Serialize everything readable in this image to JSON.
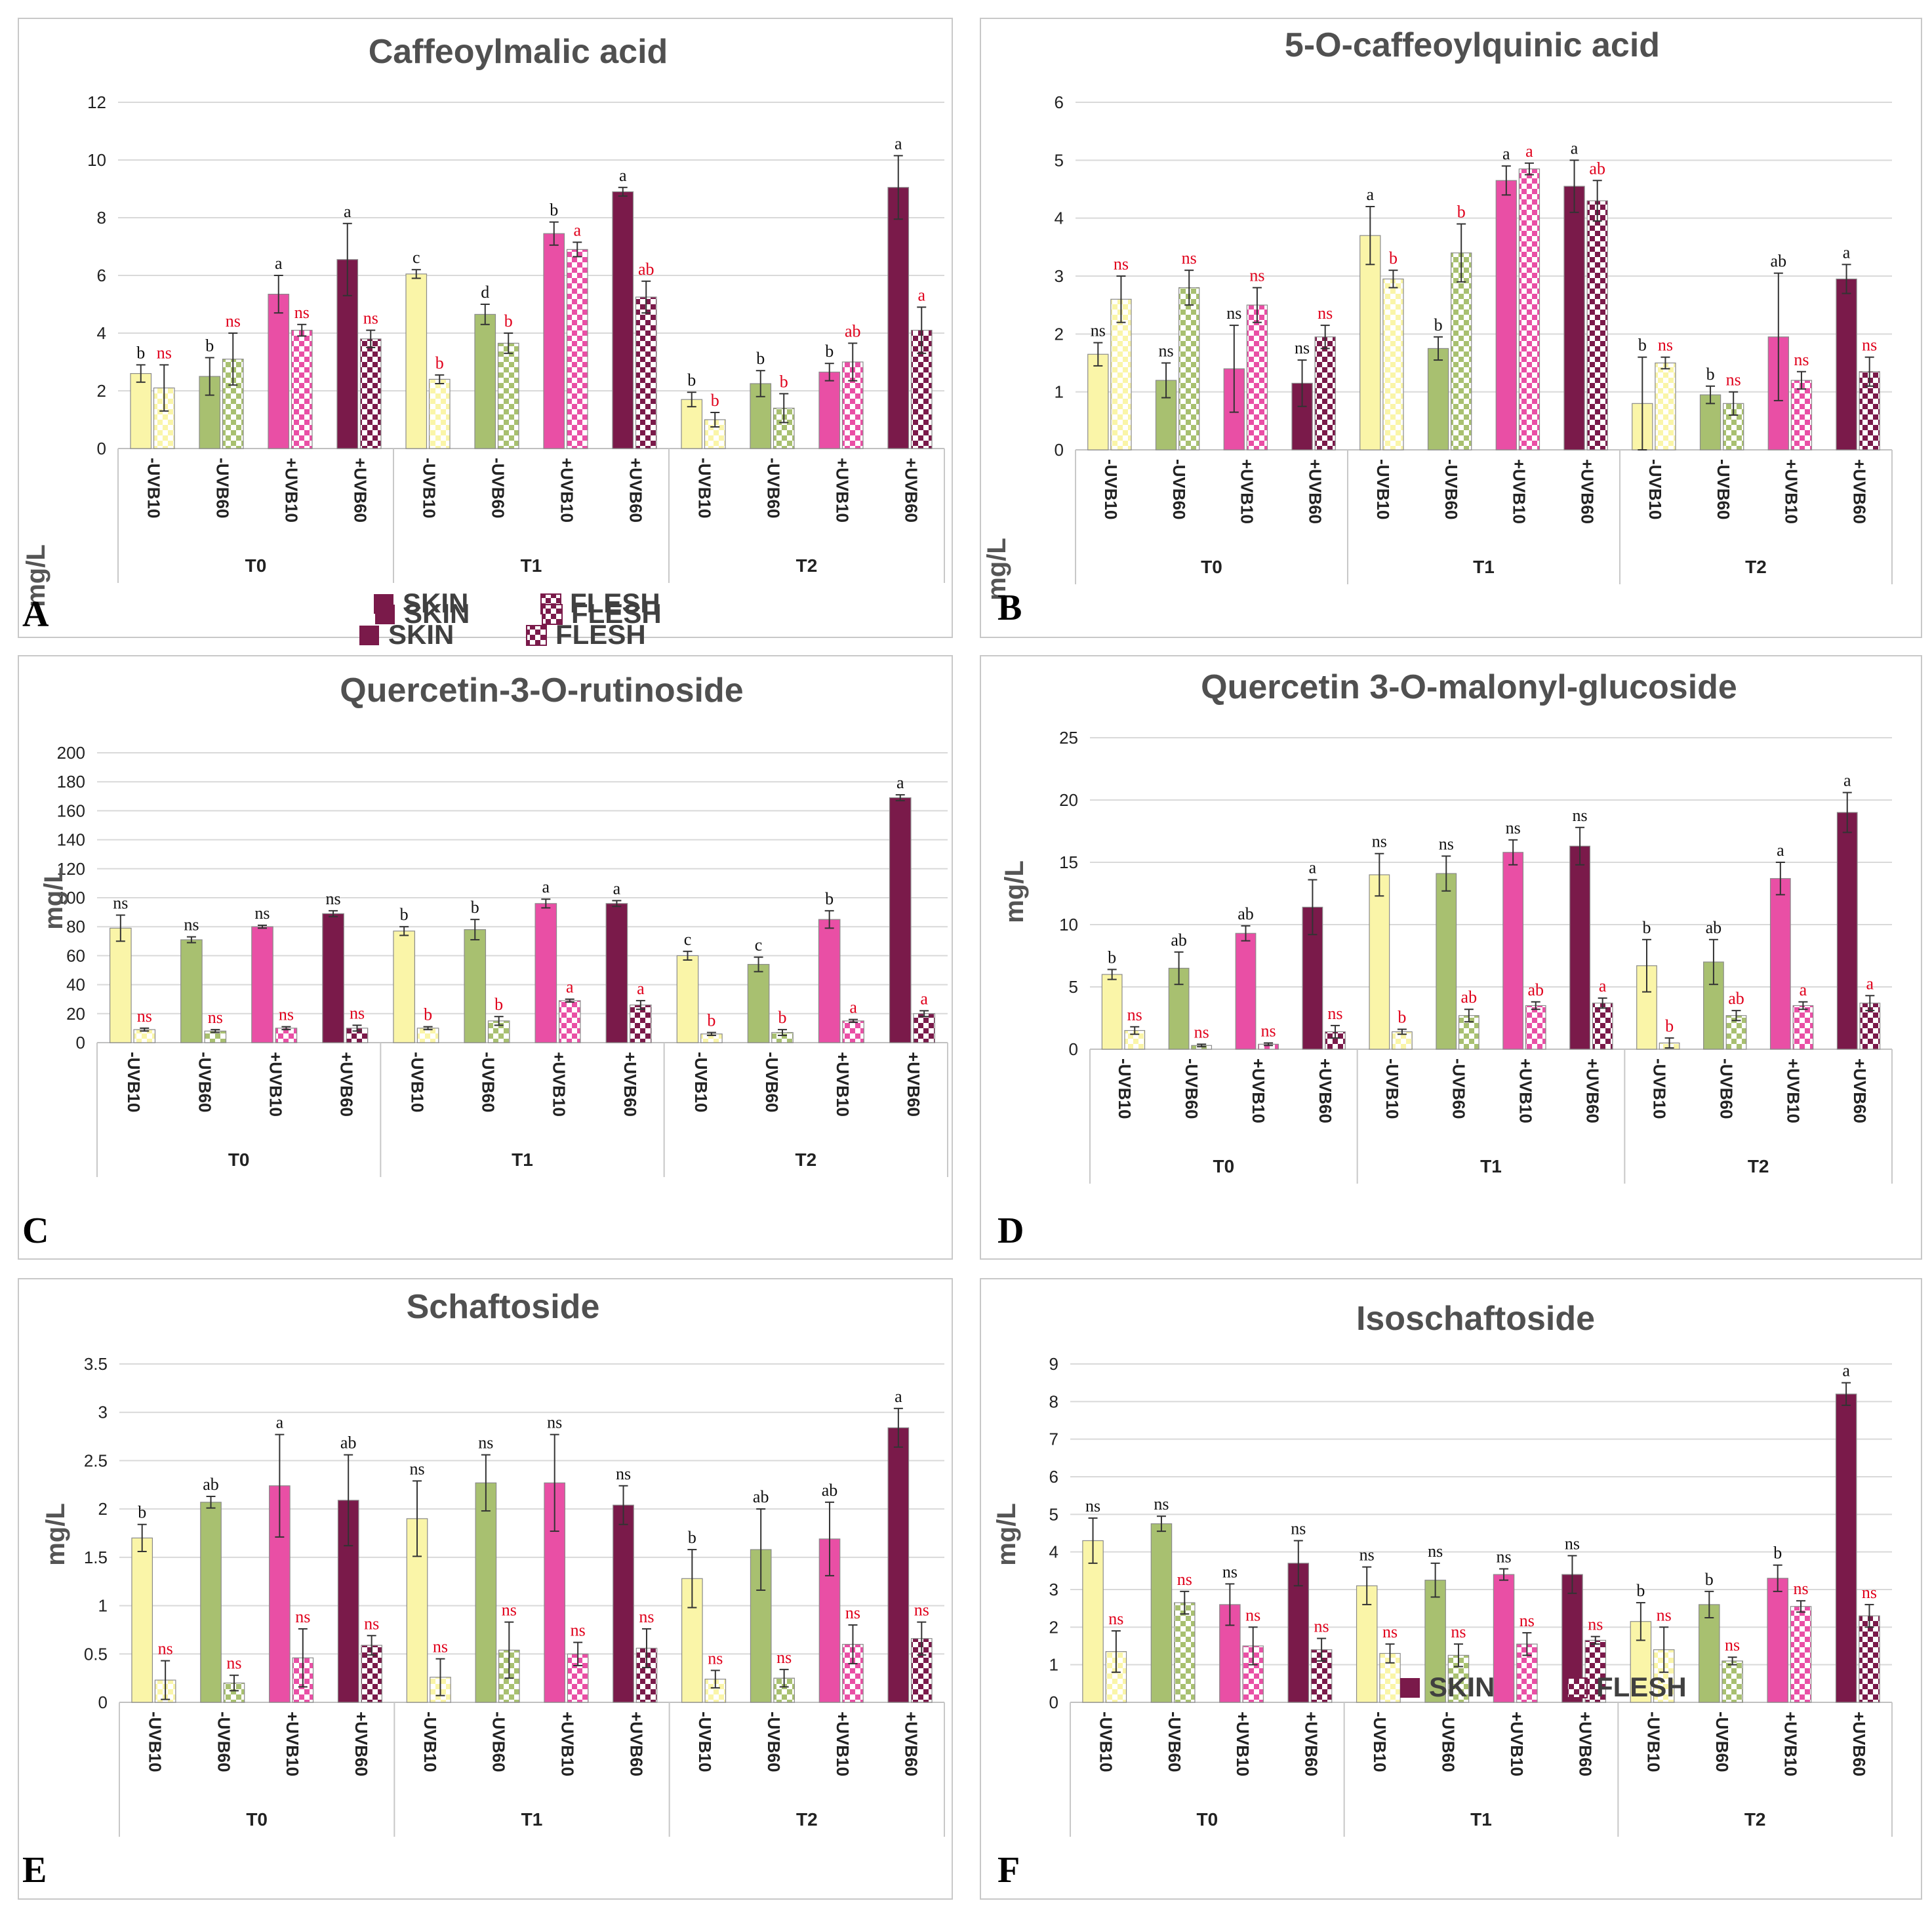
{
  "groups": [
    "T0",
    "T1",
    "T2"
  ],
  "conditions": [
    "-UVB10",
    "-UVB60",
    "+UVB10",
    "+UVB60"
  ],
  "legend": {
    "skin": "SKIN",
    "flesh": "FLESH"
  },
  "ylabel": "mg/L",
  "colors": {
    "-UVB10": "#FAF5A8",
    "-UVB60": "#A8C070",
    "+UVB10": "#E94FA5",
    "+UVB60": "#7A1A4A",
    "skin_legend": "#7A1A4A",
    "letter_skin": "#111111",
    "letter_flesh": "#E0001B",
    "axis_text": "#222222",
    "title": "#505050",
    "grid": "#D9D9D9"
  },
  "chart_data": [
    {
      "type": "bar",
      "panel": "A",
      "title": "Caffeoylmalic acid",
      "ylabel": "mg/L",
      "ylim": [
        0,
        12
      ],
      "yticks": [
        "0",
        "2",
        "4",
        "6",
        "8",
        "10",
        "12"
      ],
      "series": [
        {
          "name": "SKIN",
          "values": [
            2.6,
            2.5,
            5.35,
            6.55,
            6.05,
            4.65,
            7.45,
            8.9,
            1.7,
            2.25,
            2.65,
            9.05
          ],
          "errors": [
            0.3,
            0.65,
            0.65,
            1.25,
            0.15,
            0.35,
            0.4,
            0.15,
            0.25,
            0.45,
            0.3,
            1.1
          ],
          "letters": [
            "b",
            "b",
            "a",
            "a",
            "c",
            "d",
            "b",
            "a",
            "b",
            "b",
            "b",
            "a"
          ]
        },
        {
          "name": "FLESH",
          "values": [
            2.1,
            3.1,
            4.1,
            3.8,
            2.4,
            3.65,
            6.9,
            5.25,
            1.0,
            1.4,
            3.0,
            4.1
          ],
          "errors": [
            0.8,
            0.9,
            0.2,
            0.3,
            0.15,
            0.35,
            0.25,
            0.55,
            0.25,
            0.5,
            0.65,
            0.8
          ],
          "letters": [
            "ns",
            "ns",
            "ns",
            "ns",
            "b",
            "b",
            "a",
            "ab",
            "b",
            "b",
            "ab",
            "a"
          ]
        }
      ]
    },
    {
      "type": "bar",
      "panel": "B",
      "title": "5-O-caffeoylquinic acid",
      "ylabel": "mg/L",
      "ylim": [
        0,
        6
      ],
      "yticks": [
        "0",
        "1",
        "2",
        "3",
        "4",
        "5",
        "6"
      ],
      "series": [
        {
          "name": "SKIN",
          "values": [
            1.65,
            1.2,
            1.4,
            1.15,
            3.7,
            1.75,
            4.65,
            4.55,
            0.8,
            0.95,
            1.95,
            2.95
          ],
          "errors": [
            0.2,
            0.3,
            0.75,
            0.4,
            0.5,
            0.2,
            0.25,
            0.45,
            0.8,
            0.15,
            1.1,
            0.25
          ],
          "letters": [
            "ns",
            "ns",
            "ns",
            "ns",
            "a",
            "b",
            "a",
            "a",
            "b",
            "b",
            "ab",
            "a"
          ]
        },
        {
          "name": "FLESH",
          "values": [
            2.6,
            2.8,
            2.5,
            1.95,
            2.95,
            3.4,
            4.85,
            4.3,
            1.5,
            0.8,
            1.2,
            1.35
          ],
          "errors": [
            0.4,
            0.3,
            0.3,
            0.2,
            0.15,
            0.5,
            0.1,
            0.35,
            0.1,
            0.2,
            0.15,
            0.25
          ],
          "letters": [
            "ns",
            "ns",
            "ns",
            "ns",
            "b",
            "b",
            "a",
            "ab",
            "ns",
            "ns",
            "ns",
            "ns"
          ]
        }
      ]
    },
    {
      "type": "bar",
      "panel": "C",
      "title": "Quercetin-3-O-rutinoside",
      "ylabel": "mg/L",
      "ylim": [
        0,
        200
      ],
      "yticks": [
        "0",
        "20",
        "40",
        "60",
        "80",
        "100",
        "120",
        "140",
        "160",
        "180",
        "200"
      ],
      "series": [
        {
          "name": "SKIN",
          "values": [
            79,
            71,
            80,
            89,
            77,
            78,
            96,
            96,
            60,
            54,
            85,
            169
          ],
          "errors": [
            9,
            2,
            1,
            2,
            3,
            7,
            3,
            2,
            3,
            5,
            6,
            2
          ],
          "letters": [
            "ns",
            "ns",
            "ns",
            "ns",
            "b",
            "b",
            "a",
            "a",
            "c",
            "c",
            "b",
            "a"
          ]
        },
        {
          "name": "FLESH",
          "values": [
            9,
            8,
            10,
            10,
            10,
            15,
            29,
            26,
            6,
            7,
            15,
            20
          ],
          "errors": [
            1,
            1,
            1,
            2,
            1,
            3,
            1,
            3,
            1,
            2,
            1,
            2
          ],
          "letters": [
            "ns",
            "ns",
            "ns",
            "ns",
            "b",
            "b",
            "a",
            "a",
            "b",
            "b",
            "a",
            "a"
          ]
        }
      ]
    },
    {
      "type": "bar",
      "panel": "D",
      "title": "Quercetin 3-O-malonyl-glucoside",
      "ylabel": "mg/L",
      "ylim": [
        0,
        25
      ],
      "yticks": [
        "0",
        "5",
        "10",
        "15",
        "20",
        "25"
      ],
      "series": [
        {
          "name": "SKIN",
          "values": [
            6.0,
            6.5,
            9.3,
            11.4,
            14.0,
            14.1,
            15.8,
            16.3,
            6.7,
            7.0,
            13.7,
            19.0
          ],
          "errors": [
            0.4,
            1.3,
            0.6,
            2.2,
            1.7,
            1.4,
            1.0,
            1.5,
            2.1,
            1.8,
            1.3,
            1.6
          ],
          "letters": [
            "b",
            "ab",
            "ab",
            "a",
            "ns",
            "ns",
            "ns",
            "ns",
            "b",
            "ab",
            "a",
            "a"
          ]
        },
        {
          "name": "FLESH",
          "values": [
            1.5,
            0.3,
            0.4,
            1.4,
            1.4,
            2.7,
            3.5,
            3.7,
            0.5,
            2.7,
            3.5,
            3.7
          ],
          "errors": [
            0.3,
            0.1,
            0.1,
            0.5,
            0.2,
            0.5,
            0.3,
            0.4,
            0.4,
            0.4,
            0.3,
            0.6
          ],
          "letters": [
            "ns",
            "ns",
            "ns",
            "ns",
            "b",
            "ab",
            "ab",
            "a",
            "b",
            "ab",
            "a",
            "a"
          ]
        }
      ]
    },
    {
      "type": "bar",
      "panel": "E",
      "title": "Schaftoside",
      "ylabel": "mg/L",
      "ylim": [
        0,
        3.5
      ],
      "yticks": [
        "0",
        "0.5",
        "1",
        "1.5",
        "2",
        "2.5",
        "3",
        "3.5"
      ],
      "series": [
        {
          "name": "SKIN",
          "values": [
            1.7,
            2.07,
            2.24,
            2.09,
            1.9,
            2.27,
            2.27,
            2.04,
            1.28,
            1.58,
            1.69,
            2.84
          ],
          "errors": [
            0.14,
            0.06,
            0.53,
            0.47,
            0.39,
            0.29,
            0.5,
            0.2,
            0.3,
            0.42,
            0.38,
            0.2
          ],
          "letters": [
            "b",
            "ab",
            "a",
            "ab",
            "ns",
            "ns",
            "ns",
            "ns",
            "b",
            "ab",
            "ab",
            "a"
          ]
        },
        {
          "name": "FLESH",
          "values": [
            0.23,
            0.2,
            0.46,
            0.59,
            0.26,
            0.54,
            0.5,
            0.56,
            0.24,
            0.25,
            0.6,
            0.66
          ],
          "errors": [
            0.2,
            0.08,
            0.3,
            0.1,
            0.19,
            0.29,
            0.12,
            0.2,
            0.09,
            0.09,
            0.2,
            0.17
          ],
          "letters": [
            "ns",
            "ns",
            "ns",
            "ns",
            "ns",
            "ns",
            "ns",
            "ns",
            "ns",
            "ns",
            "ns",
            "ns"
          ]
        }
      ]
    },
    {
      "type": "bar",
      "panel": "F",
      "title": "Isoschaftoside",
      "ylabel": "mg/L",
      "ylim": [
        0,
        9
      ],
      "yticks": [
        "0",
        "1",
        "2",
        "3",
        "4",
        "5",
        "6",
        "7",
        "8",
        "9"
      ],
      "series": [
        {
          "name": "SKIN",
          "values": [
            4.3,
            4.75,
            2.6,
            3.7,
            3.1,
            3.25,
            3.4,
            3.4,
            2.15,
            2.6,
            3.3,
            8.2
          ],
          "errors": [
            0.6,
            0.2,
            0.55,
            0.6,
            0.5,
            0.45,
            0.15,
            0.5,
            0.5,
            0.35,
            0.35,
            0.3
          ],
          "letters": [
            "ns",
            "ns",
            "ns",
            "ns",
            "ns",
            "ns",
            "ns",
            "ns",
            "b",
            "b",
            "b",
            "a"
          ]
        },
        {
          "name": "FLESH",
          "values": [
            1.35,
            2.65,
            1.5,
            1.4,
            1.3,
            1.25,
            1.55,
            1.65,
            1.4,
            1.1,
            2.55,
            2.3
          ],
          "errors": [
            0.55,
            0.3,
            0.5,
            0.3,
            0.25,
            0.3,
            0.3,
            0.1,
            0.6,
            0.1,
            0.15,
            0.3
          ],
          "letters": [
            "ns",
            "ns",
            "ns",
            "ns",
            "ns",
            "ns",
            "ns",
            "ns",
            "ns",
            "ns",
            "ns",
            "ns"
          ]
        }
      ]
    }
  ]
}
